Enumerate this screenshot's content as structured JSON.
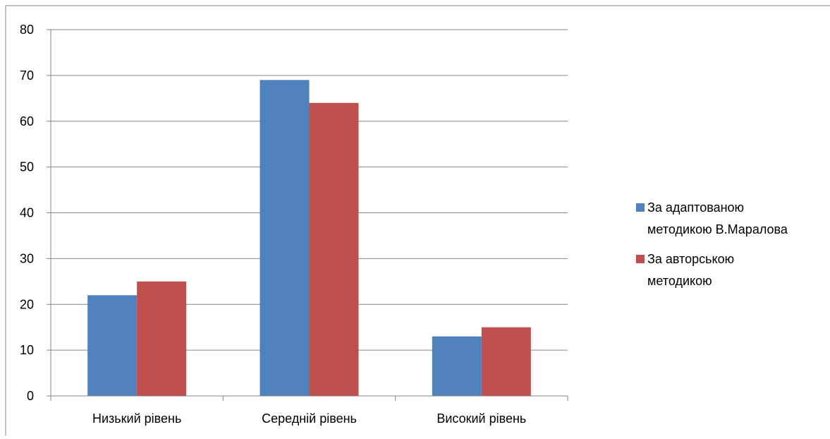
{
  "chart_data": {
    "type": "bar",
    "title": "",
    "xlabel": "",
    "ylabel": "",
    "categories": [
      "Низький рівень",
      "Середній рівень",
      "Високий рівень"
    ],
    "series": [
      {
        "name": "За адаптованою методикою В.Маралова",
        "legend_lines": [
          "За адаптованою",
          "методикою В.Маралова"
        ],
        "color": "#4F81BD",
        "values": [
          22,
          69,
          13
        ]
      },
      {
        "name": "За авторською методикою",
        "legend_lines": [
          "За авторською",
          "методикою"
        ],
        "color": "#C0504D",
        "values": [
          25,
          64,
          15
        ]
      }
    ],
    "ylim": [
      0,
      80
    ],
    "yticks": [
      0,
      10,
      20,
      30,
      40,
      50,
      60,
      70,
      80
    ],
    "grid": true,
    "legend_position": "right"
  }
}
